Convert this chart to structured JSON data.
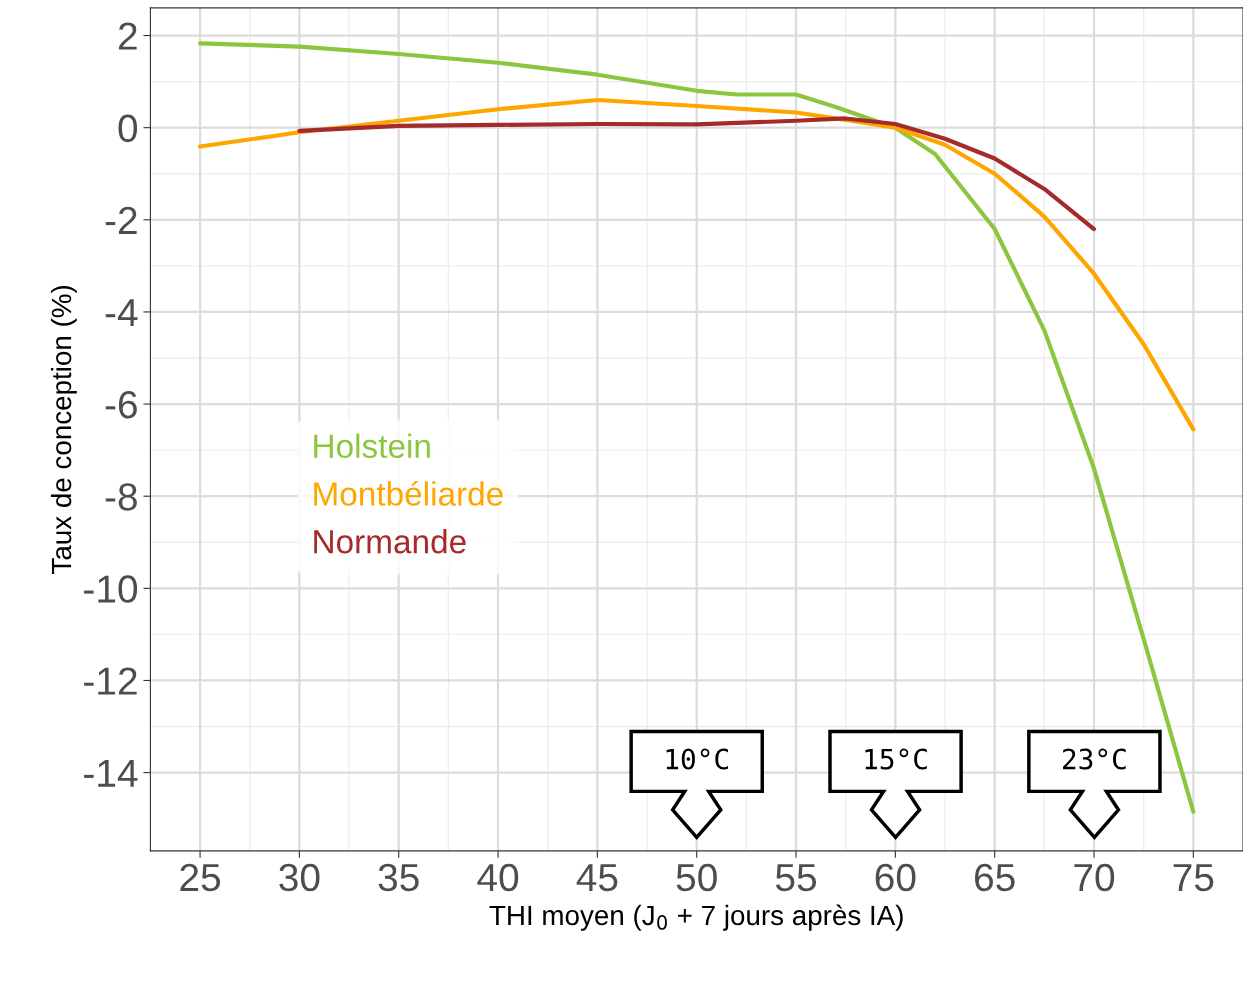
{
  "chart_data": {
    "type": "line",
    "xlabel": "THI moyen (J$_{0}$ + 7 jours après IA)",
    "ylabel": "Taux de conception (%)",
    "xlim": [
      22.5,
      77.5
    ],
    "xticks": [
      25,
      30,
      35,
      40,
      45,
      50,
      55,
      60,
      65,
      70,
      75
    ],
    "ylim": [
      -15.7,
      2.6
    ],
    "yticks": [
      2,
      0,
      -2,
      -4,
      -6,
      -8,
      -10,
      -12,
      -14
    ],
    "grid": true,
    "legend": "left",
    "series": [
      {
        "name": "Holstein",
        "color": "#8cc63f",
        "x": [
          25,
          30,
          35,
          40,
          45,
          50,
          52,
          55,
          57,
          60,
          62,
          65,
          67.5,
          70,
          72.5,
          75
        ],
        "values": [
          1.83,
          1.76,
          1.6,
          1.41,
          1.15,
          0.8,
          0.72,
          0.72,
          0.45,
          0,
          -0.57,
          -2.2,
          -4.4,
          -7.4,
          -11.1,
          -14.85
        ]
      },
      {
        "name": "Montbéliarde",
        "color": "#ffa500",
        "x": [
          25,
          30,
          35,
          40,
          45,
          50,
          55,
          57.5,
          60,
          62.5,
          65,
          67.5,
          70,
          72.5,
          75
        ],
        "values": [
          -0.41,
          -0.1,
          0.15,
          0.4,
          0.6,
          0.47,
          0.33,
          0.17,
          0,
          -0.37,
          -1,
          -1.93,
          -3.17,
          -4.7,
          -6.55
        ]
      },
      {
        "name": "Normande",
        "color": "#a52a2a",
        "x": [
          30,
          35,
          40,
          45,
          50,
          55,
          57.5,
          60,
          62.5,
          65,
          67.5,
          70
        ],
        "values": [
          -0.07,
          0.04,
          0.06,
          0.08,
          0.07,
          0.15,
          0.2,
          0.08,
          -0.24,
          -0.67,
          -1.33,
          -2.2
        ]
      }
    ],
    "annotations": [
      "10°C",
      "15°C",
      "23°C"
    ]
  }
}
